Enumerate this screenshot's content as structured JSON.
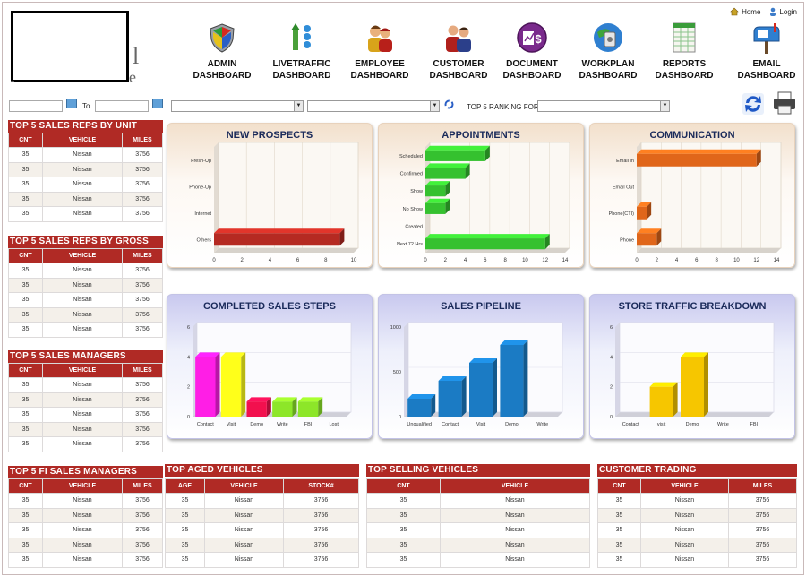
{
  "toplinks": {
    "home": "Home",
    "login": "Login"
  },
  "nav": [
    {
      "label1": "ADMIN",
      "label2": "DASHBOARD",
      "icon": "shield-icon"
    },
    {
      "label1": "LIVETRAFFIC",
      "label2": "DASHBOARD",
      "icon": "traffic-icon"
    },
    {
      "label1": "EMPLOYEE",
      "label2": "DASHBOARD",
      "icon": "employees-icon"
    },
    {
      "label1": "CUSTOMER",
      "label2": "DASHBOARD",
      "icon": "customers-icon"
    },
    {
      "label1": "DOCUMENT",
      "label2": "DASHBOARD",
      "icon": "document-dollar-icon"
    },
    {
      "label1": "WORKPLAN",
      "label2": "DASHBOARD",
      "icon": "workplan-globe-icon"
    },
    {
      "label1": "REPORTS",
      "label2": "DASHBOARD",
      "icon": "spreadsheet-icon"
    },
    {
      "label1": "EMAIL",
      "label2": "DASHBOARD",
      "icon": "mailbox-icon"
    }
  ],
  "filters": {
    "to_label": "To",
    "ranking_label": "TOP 5 RANKING FOR"
  },
  "tables": {
    "sales_reps_unit": {
      "title": "TOP 5 SALES REPS BY UNIT",
      "headers": [
        "CNT",
        "VEHICLE",
        "MILES"
      ],
      "rows": [
        [
          "35",
          "Nissan",
          "3756"
        ],
        [
          "35",
          "Nissan",
          "3756"
        ],
        [
          "35",
          "Nissan",
          "3756"
        ],
        [
          "35",
          "Nissan",
          "3756"
        ],
        [
          "35",
          "Nissan",
          "3756"
        ]
      ]
    },
    "sales_reps_gross": {
      "title": "TOP 5 SALES REPS BY GROSS",
      "headers": [
        "CNT",
        "VEHICLE",
        "MILES"
      ],
      "rows": [
        [
          "35",
          "Nissan",
          "3756"
        ],
        [
          "35",
          "Nissan",
          "3756"
        ],
        [
          "35",
          "Nissan",
          "3756"
        ],
        [
          "35",
          "Nissan",
          "3756"
        ],
        [
          "35",
          "Nissan",
          "3756"
        ]
      ]
    },
    "sales_managers": {
      "title": "TOP 5 SALES MANAGERS",
      "headers": [
        "CNT",
        "VEHICLE",
        "MILES"
      ],
      "rows": [
        [
          "35",
          "Nissan",
          "3756"
        ],
        [
          "35",
          "Nissan",
          "3756"
        ],
        [
          "35",
          "Nissan",
          "3756"
        ],
        [
          "35",
          "Nissan",
          "3756"
        ],
        [
          "35",
          "Nissan",
          "3756"
        ]
      ]
    },
    "fi_managers": {
      "title": "TOP 5 FI SALES MANAGERS",
      "headers": [
        "CNT",
        "VEHICLE",
        "MILES"
      ],
      "rows": [
        [
          "35",
          "Nissan",
          "3756"
        ],
        [
          "35",
          "Nissan",
          "3756"
        ],
        [
          "35",
          "Nissan",
          "3756"
        ],
        [
          "35",
          "Nissan",
          "3756"
        ],
        [
          "35",
          "Nissan",
          "3756"
        ]
      ]
    },
    "aged_vehicles": {
      "title": "TOP AGED VEHICLES",
      "headers": [
        "AGE",
        "VEHICLE",
        "STOCK#"
      ],
      "rows": [
        [
          "35",
          "Nissan",
          "3756"
        ],
        [
          "35",
          "Nissan",
          "3756"
        ],
        [
          "35",
          "Nissan",
          "3756"
        ],
        [
          "35",
          "Nissan",
          "3756"
        ],
        [
          "35",
          "Nissan",
          "3756"
        ]
      ]
    },
    "selling_vehicles": {
      "title": "TOP SELLING VEHICLES",
      "headers": [
        "CNT",
        "VEHICLE"
      ],
      "rows": [
        [
          "35",
          "Nissan"
        ],
        [
          "35",
          "Nissan"
        ],
        [
          "35",
          "Nissan"
        ],
        [
          "35",
          "Nissan"
        ],
        [
          "35",
          "Nissan"
        ]
      ]
    },
    "customer_trading": {
      "title": "CUSTOMER TRADING",
      "headers": [
        "CNT",
        "VEHICLE",
        "MILES"
      ],
      "rows": [
        [
          "35",
          "Nissan",
          "3756"
        ],
        [
          "35",
          "Nissan",
          "3756"
        ],
        [
          "35",
          "Nissan",
          "3756"
        ],
        [
          "35",
          "Nissan",
          "3756"
        ],
        [
          "35",
          "Nissan",
          "3756"
        ]
      ]
    }
  },
  "chart_data": [
    {
      "type": "bar",
      "orientation": "horizontal",
      "title": "NEW PROSPECTS",
      "categories": [
        "Fresh-Up",
        "Phone-Up",
        "Internet",
        "Others"
      ],
      "values": [
        0,
        0,
        0,
        9
      ],
      "xlim": [
        0,
        10
      ],
      "ticks": [
        0,
        2,
        4,
        6,
        8,
        10
      ],
      "color": "#b52a22"
    },
    {
      "type": "bar",
      "orientation": "horizontal",
      "title": "APPOINTMENTS",
      "categories": [
        "Scheduled",
        "Confirmed",
        "Show",
        "No Show",
        "Created",
        "Next 72 Hrs"
      ],
      "values": [
        6,
        4,
        2,
        2,
        0,
        12
      ],
      "xlim": [
        0,
        14
      ],
      "ticks": [
        0,
        2,
        4,
        6,
        8,
        10,
        12,
        14
      ],
      "color": "#35c12f"
    },
    {
      "type": "bar",
      "orientation": "horizontal",
      "title": "COMMUNICATION",
      "categories": [
        "Email In",
        "Email Out",
        "Phone(CTI)",
        "Phone"
      ],
      "values": [
        12,
        0,
        1,
        2
      ],
      "xlim": [
        0,
        14
      ],
      "ticks": [
        0,
        2,
        4,
        6,
        8,
        10,
        12,
        14
      ],
      "color": "#e0661a"
    },
    {
      "type": "bar",
      "orientation": "vertical",
      "title": "COMPLETED SALES STEPS",
      "categories": [
        "Contact",
        "Visit",
        "Demo",
        "Write",
        "FBI",
        "Lost"
      ],
      "values": [
        4,
        4,
        1,
        1,
        1,
        0
      ],
      "ylim": [
        0,
        6
      ],
      "ticks": [
        0,
        2,
        4,
        6
      ],
      "colors": [
        "#ff1ee6",
        "#ffff1a",
        "#f2104e",
        "#8de629",
        "#8de629",
        "#8de629"
      ]
    },
    {
      "type": "bar",
      "orientation": "vertical",
      "title": "SALES PIPELINE",
      "categories": [
        "Unqualified",
        "Contact",
        "Visit",
        "Demo",
        "Write"
      ],
      "values": [
        200,
        400,
        600,
        800,
        0
      ],
      "ylim": [
        0,
        1000
      ],
      "ticks": [
        0,
        500,
        1000
      ],
      "colors": [
        "#1b7bc4",
        "#1b7bc4",
        "#1b7bc4",
        "#1b7bc4",
        "#1b7bc4"
      ]
    },
    {
      "type": "bar",
      "orientation": "vertical",
      "title": "STORE TRAFFIC BREAKDOWN",
      "categories": [
        "Contact",
        "visit",
        "Demo",
        "Write",
        "FBI"
      ],
      "values": [
        0,
        2,
        4,
        0,
        0
      ],
      "ylim": [
        0,
        6
      ],
      "ticks": [
        0,
        2,
        4,
        6
      ],
      "colors": [
        "#f6c600",
        "#f6c600",
        "#f6c600",
        "#f6c600",
        "#f6c600"
      ]
    }
  ]
}
